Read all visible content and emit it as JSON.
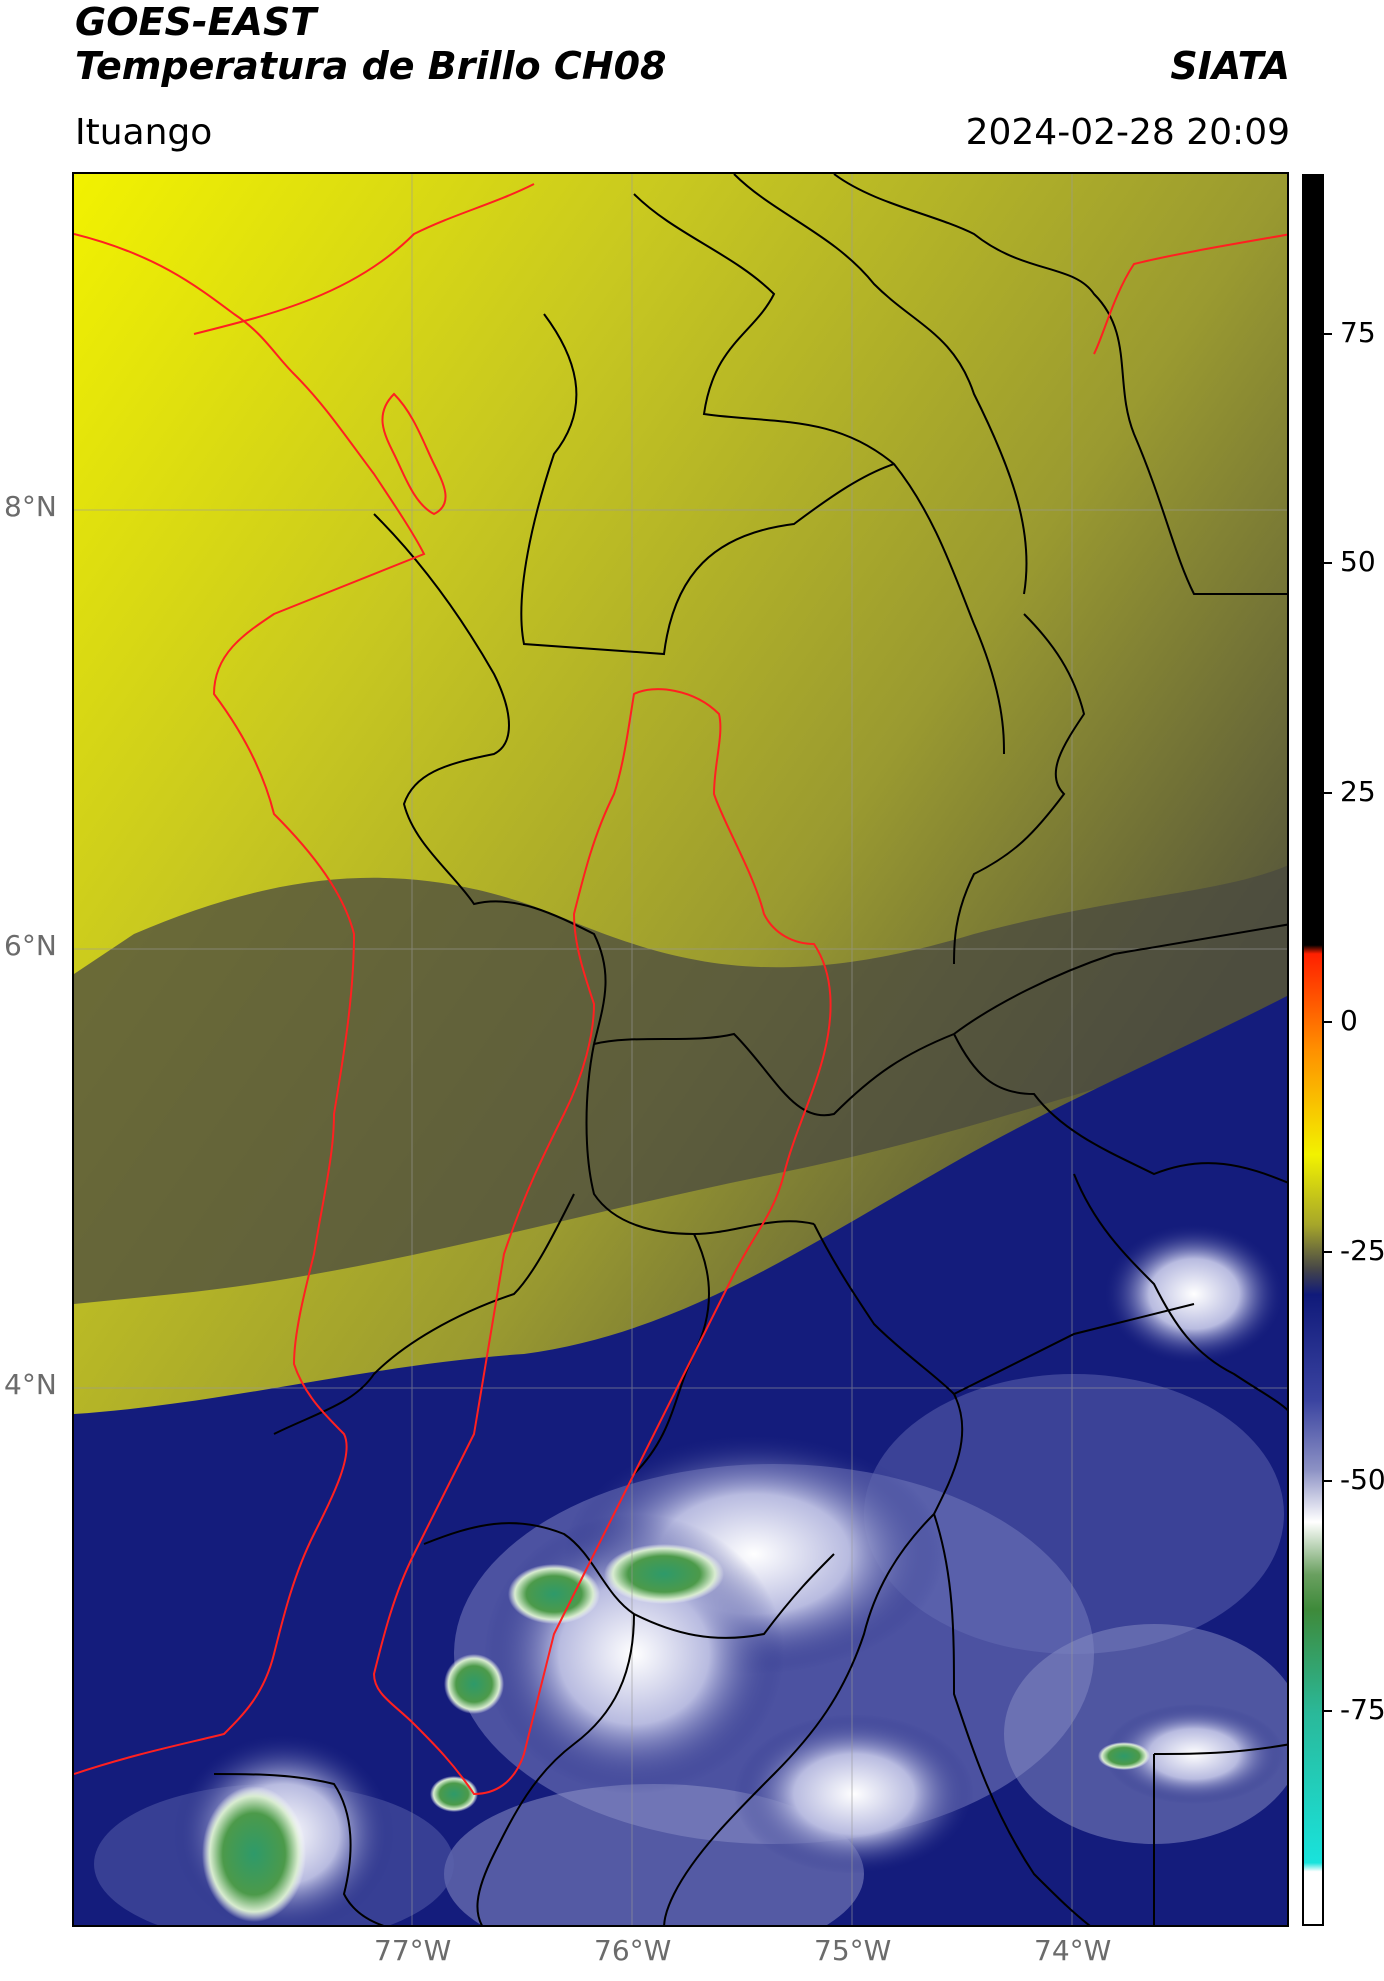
{
  "header": {
    "satellite": "GOES-EAST",
    "product": "Temperatura de Brillo CH08",
    "institution": "SIATA",
    "region": "Ituango",
    "datetime": "2024-02-28 20:09"
  },
  "map": {
    "lon_ticks": [
      "77°W",
      "76°W",
      "75°W",
      "74°W"
    ],
    "lat_ticks": [
      "8°N",
      "6°N",
      "4°N"
    ],
    "gridlines": true,
    "basin_outline_color": "#ff2020",
    "boundary_color": "#000000",
    "coastline_color": "#ff2020"
  },
  "colorbar": {
    "ticks": [
      "75",
      "50",
      "25",
      "0",
      "-25",
      "-50",
      "-75"
    ],
    "colors": {
      "warm": "#000000",
      "red": "#ff2000",
      "orange": "#ff9000",
      "yellow": "#f2f200",
      "olive": "#a6a62a",
      "grey": "#474747",
      "navy": "#101a7a",
      "lavender": "#8c91c4",
      "white": "#ffffff",
      "green": "#3e8a3a",
      "teal": "#2ab99a",
      "cyan": "#19e3dc"
    }
  }
}
